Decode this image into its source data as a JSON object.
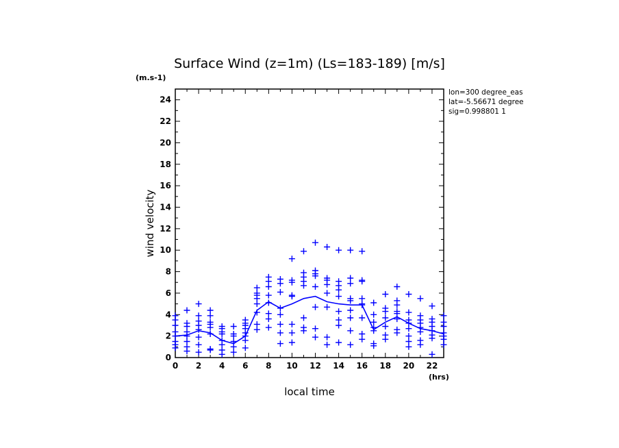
{
  "chart_data": {
    "type": "scatter",
    "title": "Surface Wind (z=1m) (Ls=183-189) [m/s]",
    "y_unit": "(m.s-1)",
    "x_unit": "(hrs)",
    "xlabel": "local time",
    "ylabel": "wind velocity",
    "xlim": [
      0,
      23
    ],
    "ylim": [
      0,
      25
    ],
    "x_ticks": [
      0,
      2,
      4,
      6,
      8,
      10,
      12,
      14,
      16,
      18,
      20,
      22
    ],
    "y_ticks": [
      0,
      2,
      4,
      6,
      8,
      10,
      12,
      14,
      16,
      18,
      20,
      22,
      24
    ],
    "color": "#0000ff",
    "info_lines": [
      "lon=300 degree_eas",
      "lat=-5.56671 degree",
      "sig=0.998801 1"
    ],
    "series": [
      {
        "marker": "+",
        "points": [
          [
            0,
            0.9
          ],
          [
            0,
            1.2
          ],
          [
            0,
            1.5
          ],
          [
            0,
            2.0
          ],
          [
            0,
            2.4
          ],
          [
            0,
            3.0
          ],
          [
            0,
            3.5
          ],
          [
            0,
            3.9
          ],
          [
            1,
            0.6
          ],
          [
            1,
            1.0
          ],
          [
            1,
            1.5
          ],
          [
            1,
            2.0
          ],
          [
            1,
            2.4
          ],
          [
            1,
            2.9
          ],
          [
            1,
            3.2
          ],
          [
            1,
            4.4
          ],
          [
            2,
            0.5
          ],
          [
            2,
            1.2
          ],
          [
            2,
            1.9
          ],
          [
            2,
            2.6
          ],
          [
            2,
            3.0
          ],
          [
            2,
            3.4
          ],
          [
            2,
            3.9
          ],
          [
            2,
            5.0
          ],
          [
            3,
            0.7
          ],
          [
            3,
            0.8
          ],
          [
            3,
            2.2
          ],
          [
            3,
            2.8
          ],
          [
            3,
            3.1
          ],
          [
            3,
            3.3
          ],
          [
            3,
            3.9
          ],
          [
            3,
            4.4
          ],
          [
            4,
            0.3
          ],
          [
            4,
            0.7
          ],
          [
            4,
            1.2
          ],
          [
            4,
            1.6
          ],
          [
            4,
            2.2
          ],
          [
            4,
            2.4
          ],
          [
            4,
            2.7
          ],
          [
            4,
            2.9
          ],
          [
            5,
            0.5
          ],
          [
            5,
            1.0
          ],
          [
            5,
            1.5
          ],
          [
            5,
            2.0
          ],
          [
            5,
            2.2
          ],
          [
            5,
            2.9
          ],
          [
            6,
            0.9
          ],
          [
            6,
            1.6
          ],
          [
            6,
            2.0
          ],
          [
            6,
            2.3
          ],
          [
            6,
            2.7
          ],
          [
            6,
            3.0
          ],
          [
            6,
            3.2
          ],
          [
            6,
            3.5
          ],
          [
            7,
            2.6
          ],
          [
            7,
            3.1
          ],
          [
            7,
            4.2
          ],
          [
            7,
            5.0
          ],
          [
            7,
            5.5
          ],
          [
            7,
            5.8
          ],
          [
            7,
            6.0
          ],
          [
            7,
            6.5
          ],
          [
            8,
            2.8
          ],
          [
            8,
            3.6
          ],
          [
            8,
            4.1
          ],
          [
            8,
            5.1
          ],
          [
            8,
            5.8
          ],
          [
            8,
            6.6
          ],
          [
            8,
            7.1
          ],
          [
            8,
            7.5
          ],
          [
            9,
            1.3
          ],
          [
            9,
            2.3
          ],
          [
            9,
            3.1
          ],
          [
            9,
            4.0
          ],
          [
            9,
            4.6
          ],
          [
            9,
            6.1
          ],
          [
            9,
            6.9
          ],
          [
            9,
            7.3
          ],
          [
            10,
            1.4
          ],
          [
            10,
            2.3
          ],
          [
            10,
            3.1
          ],
          [
            10,
            5.7
          ],
          [
            10,
            5.8
          ],
          [
            10,
            7.0
          ],
          [
            10,
            7.2
          ],
          [
            10,
            9.2
          ],
          [
            11,
            2.5
          ],
          [
            11,
            2.8
          ],
          [
            11,
            3.7
          ],
          [
            11,
            6.7
          ],
          [
            11,
            7.1
          ],
          [
            11,
            7.5
          ],
          [
            11,
            7.9
          ],
          [
            11,
            9.9
          ],
          [
            12,
            1.9
          ],
          [
            12,
            2.7
          ],
          [
            12,
            4.7
          ],
          [
            12,
            6.6
          ],
          [
            12,
            7.6
          ],
          [
            12,
            7.8
          ],
          [
            12,
            8.1
          ],
          [
            12,
            10.7
          ],
          [
            13,
            1.2
          ],
          [
            13,
            1.9
          ],
          [
            13,
            4.7
          ],
          [
            13,
            6.0
          ],
          [
            13,
            6.8
          ],
          [
            13,
            7.2
          ],
          [
            13,
            7.4
          ],
          [
            13,
            10.3
          ],
          [
            14,
            1.4
          ],
          [
            14,
            3.0
          ],
          [
            14,
            3.5
          ],
          [
            14,
            4.3
          ],
          [
            14,
            5.7
          ],
          [
            14,
            6.3
          ],
          [
            14,
            6.7
          ],
          [
            14,
            7.1
          ],
          [
            14,
            10.0
          ],
          [
            15,
            1.2
          ],
          [
            15,
            2.5
          ],
          [
            15,
            3.7
          ],
          [
            15,
            4.4
          ],
          [
            15,
            5.3
          ],
          [
            15,
            5.5
          ],
          [
            15,
            6.9
          ],
          [
            15,
            7.4
          ],
          [
            15,
            10.0
          ],
          [
            16,
            1.7
          ],
          [
            16,
            2.2
          ],
          [
            16,
            3.7
          ],
          [
            16,
            4.9
          ],
          [
            16,
            5.0
          ],
          [
            16,
            5.5
          ],
          [
            16,
            7.1
          ],
          [
            16,
            7.2
          ],
          [
            16,
            9.9
          ],
          [
            17,
            1.1
          ],
          [
            17,
            1.3
          ],
          [
            17,
            2.5
          ],
          [
            17,
            2.8
          ],
          [
            17,
            3.3
          ],
          [
            17,
            4.0
          ],
          [
            17,
            5.1
          ],
          [
            18,
            1.7
          ],
          [
            18,
            2.1
          ],
          [
            18,
            2.9
          ],
          [
            18,
            3.7
          ],
          [
            18,
            4.3
          ],
          [
            18,
            4.6
          ],
          [
            18,
            5.9
          ],
          [
            19,
            2.3
          ],
          [
            19,
            2.6
          ],
          [
            19,
            3.6
          ],
          [
            19,
            4.1
          ],
          [
            19,
            4.3
          ],
          [
            19,
            4.9
          ],
          [
            19,
            5.3
          ],
          [
            19,
            6.6
          ],
          [
            20,
            1.0
          ],
          [
            20,
            1.5
          ],
          [
            20,
            2.0
          ],
          [
            20,
            2.7
          ],
          [
            20,
            3.2
          ],
          [
            20,
            3.5
          ],
          [
            20,
            4.2
          ],
          [
            20,
            5.9
          ],
          [
            21,
            1.2
          ],
          [
            21,
            1.6
          ],
          [
            21,
            2.4
          ],
          [
            21,
            2.8
          ],
          [
            21,
            3.2
          ],
          [
            21,
            3.5
          ],
          [
            21,
            3.9
          ],
          [
            21,
            5.5
          ],
          [
            22,
            0.3
          ],
          [
            22,
            1.8
          ],
          [
            22,
            2.1
          ],
          [
            22,
            2.5
          ],
          [
            22,
            2.9
          ],
          [
            22,
            3.3
          ],
          [
            22,
            3.6
          ],
          [
            22,
            4.8
          ],
          [
            23,
            1.2
          ],
          [
            23,
            1.7
          ],
          [
            23,
            2.0
          ],
          [
            23,
            2.3
          ],
          [
            23,
            2.9
          ],
          [
            23,
            3.3
          ],
          [
            23,
            3.9
          ]
        ]
      },
      {
        "marker": "line",
        "x": [
          0,
          1,
          2,
          3,
          4,
          5,
          6,
          7,
          8,
          9,
          10,
          11,
          12,
          13,
          14,
          15,
          16,
          17,
          18,
          19,
          20,
          21,
          22,
          23
        ],
        "values": [
          2.0,
          2.1,
          2.5,
          2.3,
          1.6,
          1.3,
          2.0,
          4.4,
          5.2,
          4.6,
          5.0,
          5.5,
          5.7,
          5.2,
          5.0,
          4.9,
          4.9,
          2.6,
          3.3,
          3.8,
          3.2,
          2.7,
          2.5,
          2.2
        ]
      }
    ]
  }
}
